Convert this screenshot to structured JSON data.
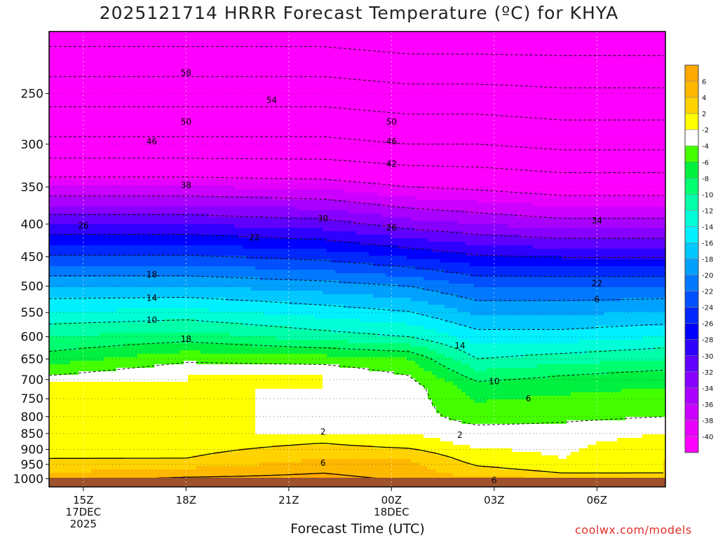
{
  "chart_data": {
    "type": "heatmap",
    "title": "2025121714 HRRR Forecast Temperature (ºC) for KHYA",
    "xlabel": "Forecast Time (UTC)",
    "ylabel": "",
    "x_ticks": [
      {
        "hour": 15,
        "label": "15Z",
        "label2": "17DEC",
        "label3": "2025"
      },
      {
        "hour": 18,
        "label": "18Z",
        "label2": "",
        "label3": ""
      },
      {
        "hour": 21,
        "label": "21Z",
        "label2": "",
        "label3": ""
      },
      {
        "hour": 24,
        "label": "00Z",
        "label2": "18DEC",
        "label3": ""
      },
      {
        "hour": 27,
        "label": "03Z",
        "label2": "",
        "label3": ""
      },
      {
        "hour": 30,
        "label": "06Z",
        "label2": "",
        "label3": ""
      }
    ],
    "xlim": [
      14.0,
      32.0
    ],
    "y_ticks": [
      250,
      300,
      350,
      400,
      450,
      500,
      550,
      600,
      650,
      700,
      750,
      800,
      850,
      900,
      950,
      1000
    ],
    "ylim_hpa": [
      1030,
      200
    ],
    "y_scale": "log",
    "grid": true,
    "colorbar": {
      "labels": [
        "6",
        "4",
        "2",
        "-2",
        "-4",
        "-6",
        "-8",
        "-10",
        "-12",
        "-14",
        "-16",
        "-18",
        "-20",
        "-22",
        "-24",
        "-26",
        "-28",
        "-30",
        "-32",
        "-34",
        "-36",
        "-38",
        "-40"
      ],
      "colors": [
        "#ffb800",
        "#ffd200",
        "#ffff00",
        "#ffffff",
        "#44ff00",
        "#00f040",
        "#00ff70",
        "#00ffa8",
        "#00ffd8",
        "#00f0ff",
        "#00c8ff",
        "#00a0ff",
        "#0078ff",
        "#0050ff",
        "#0028ff",
        "#0000ff",
        "#3000ff",
        "#6000ff",
        "#8800ff",
        "#aa00ff",
        "#cc00ff",
        "#e800ff",
        "#ff00ff"
      ],
      "top_color": "#ffa800"
    },
    "contour_labels": [
      "58",
      "54",
      "50",
      "50",
      "46",
      "46",
      "42",
      "38",
      "30",
      "26",
      "26",
      "22",
      "34",
      "22",
      "18",
      "14",
      "10",
      "18",
      "6",
      "14",
      "10",
      "6",
      "2",
      "2",
      "6",
      "6"
    ],
    "temperature_profiles": [
      {
        "hour": 14.0,
        "p": [
          1010,
          980,
          930,
          880,
          850,
          800,
          720,
          690,
          650,
          600,
          500,
          400,
          300,
          200
        ],
        "t": [
          6.0,
          4.0,
          2.0,
          0.5,
          0.0,
          1.0,
          1.0,
          -2.0,
          -5.0,
          -8.0,
          -16.0,
          -28.0,
          -45.0,
          -60.0
        ]
      },
      {
        "hour": 18.0,
        "p": [
          1010,
          980,
          930,
          880,
          850,
          800,
          720,
          690,
          650,
          600,
          500,
          400,
          300,
          200
        ],
        "t": [
          7.0,
          5.0,
          2.0,
          1.0,
          0.0,
          1.0,
          0.0,
          0.0,
          -2.5,
          -7.0,
          -16.0,
          -28.0,
          -45.0,
          -60.0
        ]
      },
      {
        "hour": 22.0,
        "p": [
          1010,
          980,
          930,
          880,
          850,
          800,
          720,
          690,
          650,
          600,
          500,
          400,
          300,
          200
        ],
        "t": [
          7.0,
          6.0,
          4.0,
          2.0,
          0.0,
          -1.0,
          0.0,
          0.0,
          -3.0,
          -9.0,
          -17.0,
          -29.0,
          -45.0,
          -60.0
        ]
      },
      {
        "hour": 24.5,
        "p": [
          1010,
          980,
          930,
          880,
          850,
          800,
          720,
          690,
          650,
          600,
          500,
          400,
          300,
          200
        ],
        "t": [
          6.0,
          5.0,
          4.0,
          1.0,
          0.0,
          -1.0,
          -1.0,
          -2.0,
          -4.0,
          -10.0,
          -18.0,
          -31.0,
          -46.0,
          -61.0
        ]
      },
      {
        "hour": 26.5,
        "p": [
          1010,
          980,
          930,
          880,
          850,
          800,
          720,
          690,
          650,
          600,
          500,
          400,
          300,
          200
        ],
        "t": [
          5.0,
          3.0,
          1.0,
          -0.5,
          -1.0,
          -3.0,
          -5.0,
          -7.0,
          -10.0,
          -13.0,
          -20.0,
          -32.0,
          -46.0,
          -61.0
        ]
      },
      {
        "hour": 29.0,
        "p": [
          1010,
          980,
          930,
          880,
          850,
          800,
          720,
          690,
          650,
          600,
          500,
          400,
          300,
          200
        ],
        "t": [
          5.0,
          2.0,
          0.0,
          -0.5,
          -1.0,
          -2.5,
          -4.5,
          -6.0,
          -9.0,
          -13.0,
          -20.0,
          -33.0,
          -47.0,
          -61.0
        ]
      },
      {
        "hour": 32.0,
        "p": [
          1010,
          980,
          930,
          880,
          850,
          800,
          720,
          690,
          650,
          600,
          500,
          400,
          300,
          200
        ],
        "t": [
          4.0,
          2.0,
          2.0,
          1.0,
          0.0,
          -2.0,
          -4.0,
          -5.0,
          -8.0,
          -12.0,
          -20.0,
          -33.0,
          -47.0,
          -61.0
        ]
      }
    ],
    "ground_color": "#a0522d"
  },
  "credit": "coolwx.com/models"
}
